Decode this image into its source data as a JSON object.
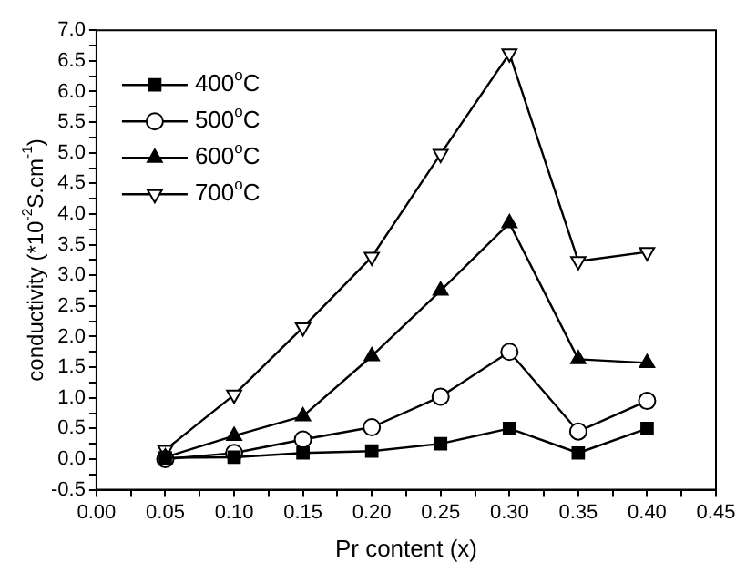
{
  "chart_data": {
    "type": "line",
    "xlabel": "Pr content (x)",
    "ylabel": "conductivity (*10$^{-2}$S.cm$^{-1}$)",
    "x": [
      0.05,
      0.1,
      0.15,
      0.2,
      0.25,
      0.3,
      0.35,
      0.4
    ],
    "series": [
      {
        "name": "400$^{o}$C",
        "color": "#000000",
        "marker": "square",
        "values": [
          0.02,
          0.03,
          0.1,
          0.13,
          0.25,
          0.5,
          0.1,
          0.5
        ]
      },
      {
        "name": "500$^{o}$C",
        "color": "#000000",
        "marker": "circle",
        "values": [
          0.0,
          0.1,
          0.32,
          0.52,
          1.02,
          1.75,
          0.45,
          0.95
        ]
      },
      {
        "name": "600$^{o}$C",
        "color": "#000000",
        "marker": "triangle",
        "values": [
          0.03,
          0.38,
          0.7,
          1.68,
          2.75,
          3.85,
          1.63,
          1.57
        ]
      },
      {
        "name": "700$^{o}$C",
        "color": "#000000",
        "marker": "triangle-down",
        "values": [
          0.15,
          1.05,
          2.15,
          3.3,
          4.98,
          6.62,
          3.23,
          3.38
        ]
      }
    ],
    "xlim": [
      0,
      0.45
    ],
    "xticks": [
      "0.00",
      {
        "value": 0.025,
        "label": null
      },
      {
        "value": 0.05,
        "label": "0.05"
      },
      {
        "value": 0.075,
        "label": null
      },
      {
        "value": 0.1,
        "label": "0.10"
      },
      {
        "value": 0.125,
        "label": null
      },
      {
        "value": 0.15,
        "label": "0.15"
      },
      {
        "value": 0.175,
        "label": null
      },
      {
        "value": 0.2,
        "label": "0.20"
      },
      {
        "value": 0.225,
        "label": null
      },
      {
        "value": 0.25,
        "label": "0.25"
      },
      {
        "value": 0.275,
        "label": null
      },
      {
        "value": 0.3,
        "label": "0.30"
      },
      {
        "value": 0.325,
        "label": null
      },
      {
        "value": 0.35,
        "label": "0.35"
      },
      {
        "value": 0.375,
        "label": null
      },
      {
        "value": 0.4,
        "label": "0.40"
      },
      {
        "value": 0.425,
        "label": null
      },
      {
        "value": 0.45,
        "label": "0.45"
      }
    ],
    "ylim": [
      -0.5,
      7.0
    ],
    "yticks": [
      {
        "value": -0.5,
        "label": "-0.5"
      },
      {
        "value": -0.25,
        "label": null
      },
      {
        "value": 0,
        "label": "0.0"
      },
      {
        "value": 0.25,
        "label": null
      },
      {
        "value": 0.5,
        "label": "0.5"
      },
      {
        "value": 0.75,
        "label": null
      },
      {
        "value": 1,
        "label": "1.0"
      },
      {
        "value": 1.25,
        "label": null
      },
      {
        "value": 1.5,
        "label": "1.5"
      },
      {
        "value": 1.75,
        "label": null
      },
      {
        "value": 2,
        "label": "2.0"
      },
      {
        "value": 2.25,
        "label": null
      },
      {
        "value": 2.5,
        "label": "2.5"
      },
      {
        "value": 2.75,
        "label": null
      },
      {
        "value": 3,
        "label": "3.0"
      },
      {
        "value": 3.25,
        "label": null
      },
      {
        "value": 3.5,
        "label": "3.5"
      },
      {
        "value": 3.75,
        "label": null
      },
      {
        "value": 4,
        "label": "4.0"
      },
      {
        "value": 4.25,
        "label": null
      },
      {
        "value": 4.5,
        "label": "4.5"
      },
      {
        "value": 4.75,
        "label": null
      },
      {
        "value": 5,
        "label": "5.0"
      },
      {
        "value": 5.25,
        "label": null
      },
      {
        "value": 5.5,
        "label": "5.5"
      },
      {
        "value": 5.75,
        "label": null
      },
      {
        "value": 6,
        "label": "6.0"
      },
      {
        "value": 6.25,
        "label": null
      },
      {
        "value": 6.5,
        "label": "6.5"
      },
      {
        "value": 6.75,
        "label": null
      },
      {
        "value": 7,
        "label": "7.0"
      }
    ],
    "grid": false,
    "legend": "top left",
    "line_style": "solid"
  }
}
